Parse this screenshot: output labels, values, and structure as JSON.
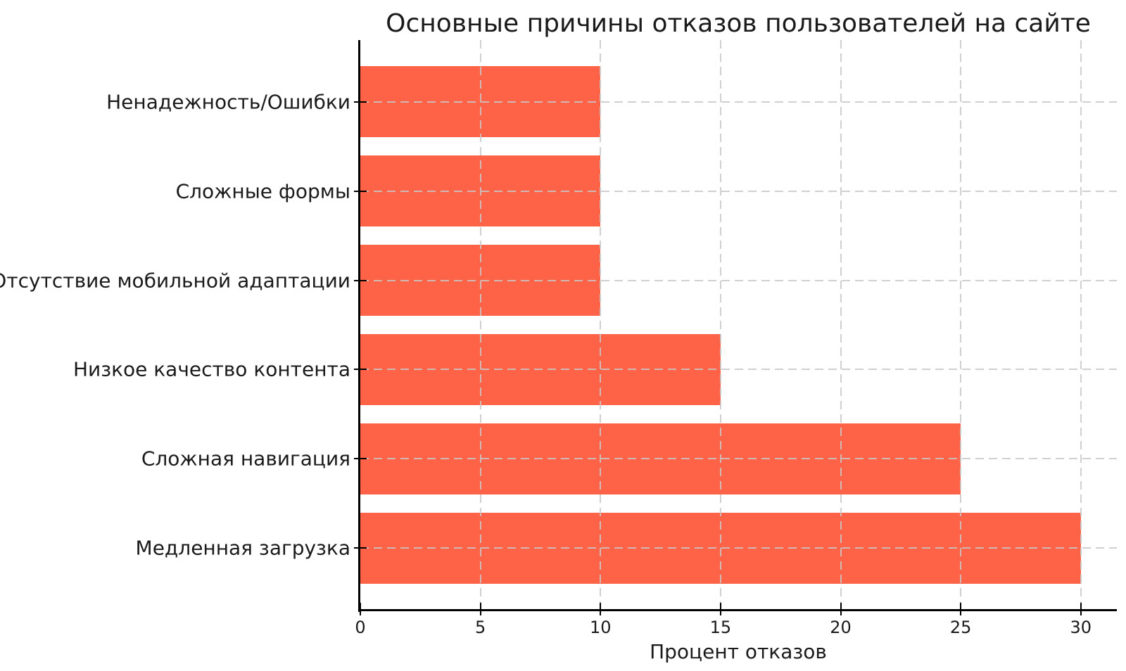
{
  "figure": {
    "background": "#ffffff"
  },
  "chart_data": {
    "type": "bar",
    "orientation": "horizontal",
    "title": "Основные причины отказов пользователей на сайте",
    "xlabel": "Процент отказов",
    "ylabel": "",
    "categories": [
      "Ненадежность/Ошибки",
      "Сложные формы",
      "Отсутствие мобильной адаптации",
      "Низкое качество контента",
      "Сложная навигация",
      "Медленная загрузка"
    ],
    "values": [
      10,
      10,
      10,
      15,
      25,
      30
    ],
    "xticks": [
      0,
      5,
      10,
      15,
      20,
      25,
      30
    ],
    "xlim": [
      0,
      31.5
    ],
    "grid": "both, dashed, drawn over bars",
    "legend": "none",
    "bar_color": "#ff6347",
    "grid_color_rgba": "rgba(200,200,200,0.85)",
    "axis_color": "#000000",
    "text_color": "#1a1a1a"
  }
}
